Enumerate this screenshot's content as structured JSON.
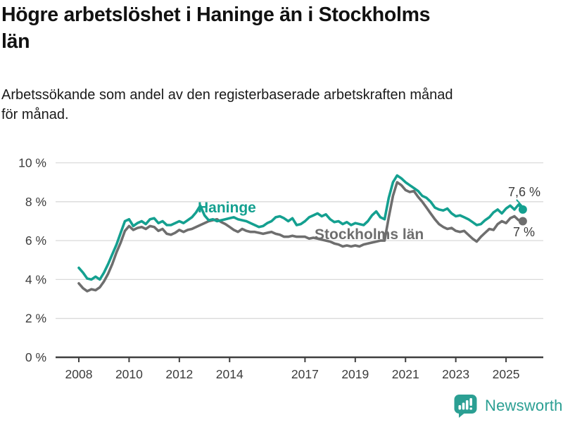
{
  "header": {
    "title": "Högre arbetslöshet i Haninge än i Stockholms län",
    "title_lines": [
      "Högre arbetslöshet i Haninge än i Stockholms",
      "län"
    ],
    "subtitle_lines": [
      "Arbetssökande som andel av den registerbaserade arbetskraften månad",
      "för månad."
    ]
  },
  "footer": {
    "brand": "Newsworthy",
    "logo_icon": "speech-bubble-bar-chart"
  },
  "colors": {
    "accent_teal": "#14a090",
    "series_gray": "#6e6e6e",
    "axis": "#3f3f3f",
    "grid": "#dadada",
    "text": "#111111",
    "brand_teal": "#2b9f93"
  },
  "chart_data": {
    "type": "line",
    "title": "Högre arbetslöshet i Haninge än i Stockholms län",
    "subtitle": "Arbetssökande som andel av den registerbaserade arbetskraften månad för månad.",
    "unit": "%",
    "grid": "horizontal",
    "legend": "inline-labels",
    "xlabel": "",
    "ylabel": "",
    "ylim": [
      0,
      10
    ],
    "x_start_year": 2008,
    "points_per_year": 6,
    "x_axis": {
      "tick_years": [
        2008,
        2010,
        2012,
        2014,
        2017,
        2019,
        2021,
        2023,
        2025
      ],
      "tick_labels": [
        "2008",
        "2010",
        "2012",
        "2014",
        "2017",
        "2019",
        "2021",
        "2023",
        "2025"
      ]
    },
    "y_axis": {
      "tick_values": [
        0,
        2,
        4,
        6,
        8,
        10
      ],
      "tick_labels": [
        "0 %",
        "2 %",
        "4 %",
        "6 %",
        "8 %",
        "10 %"
      ]
    },
    "series": [
      {
        "id": "haninge",
        "name": "Haninge",
        "color": "#14a090",
        "end_label": "7,6 %",
        "end_value": 7.6,
        "values": [
          4.6,
          4.35,
          4.05,
          4.0,
          4.15,
          4.0,
          4.35,
          4.8,
          5.3,
          5.8,
          6.4,
          7.0,
          7.1,
          6.75,
          6.9,
          7.0,
          6.85,
          7.1,
          7.15,
          6.9,
          7.0,
          6.8,
          6.8,
          6.9,
          7.0,
          6.9,
          7.05,
          7.2,
          7.45,
          7.8,
          7.3,
          7.05,
          7.1,
          7.0,
          7.05,
          7.1,
          7.15,
          7.2,
          7.1,
          7.05,
          7.0,
          6.9,
          6.8,
          6.7,
          6.75,
          6.9,
          7.0,
          7.2,
          7.25,
          7.15,
          7.0,
          7.15,
          6.8,
          6.85,
          7.0,
          7.2,
          7.3,
          7.4,
          7.25,
          7.35,
          7.1,
          6.95,
          7.0,
          6.85,
          6.95,
          6.8,
          6.9,
          6.85,
          6.8,
          7.0,
          7.3,
          7.5,
          7.2,
          7.1,
          8.2,
          9.0,
          9.35,
          9.2,
          9.0,
          8.85,
          8.7,
          8.55,
          8.3,
          8.2,
          8.0,
          7.7,
          7.6,
          7.55,
          7.65,
          7.4,
          7.25,
          7.3,
          7.2,
          7.1,
          6.95,
          6.8,
          6.85,
          7.05,
          7.2,
          7.45,
          7.6,
          7.4,
          7.65,
          7.8,
          7.6,
          7.85,
          7.6
        ]
      },
      {
        "id": "stockholms-lan",
        "name": "Stockholms län",
        "color": "#6e6e6e",
        "end_label": "7 %",
        "end_value": 7.0,
        "values": [
          3.8,
          3.55,
          3.4,
          3.5,
          3.45,
          3.6,
          3.9,
          4.3,
          4.8,
          5.4,
          5.9,
          6.5,
          6.75,
          6.55,
          6.65,
          6.7,
          6.6,
          6.75,
          6.7,
          6.5,
          6.6,
          6.35,
          6.3,
          6.4,
          6.55,
          6.45,
          6.55,
          6.6,
          6.7,
          6.8,
          6.9,
          7.0,
          7.05,
          7.1,
          6.95,
          6.85,
          6.7,
          6.55,
          6.45,
          6.6,
          6.5,
          6.45,
          6.45,
          6.4,
          6.35,
          6.4,
          6.45,
          6.35,
          6.3,
          6.2,
          6.2,
          6.25,
          6.2,
          6.2,
          6.2,
          6.1,
          6.15,
          6.1,
          6.05,
          6.0,
          5.95,
          5.85,
          5.8,
          5.7,
          5.75,
          5.7,
          5.75,
          5.7,
          5.8,
          5.85,
          5.9,
          5.95,
          6.0,
          6.0,
          7.2,
          8.3,
          9.0,
          8.85,
          8.6,
          8.5,
          8.55,
          8.25,
          8.0,
          7.7,
          7.4,
          7.1,
          6.85,
          6.7,
          6.6,
          6.65,
          6.5,
          6.45,
          6.5,
          6.3,
          6.1,
          5.95,
          6.2,
          6.4,
          6.6,
          6.55,
          6.85,
          7.0,
          6.9,
          7.15,
          7.25,
          7.05,
          7.0
        ]
      }
    ]
  }
}
